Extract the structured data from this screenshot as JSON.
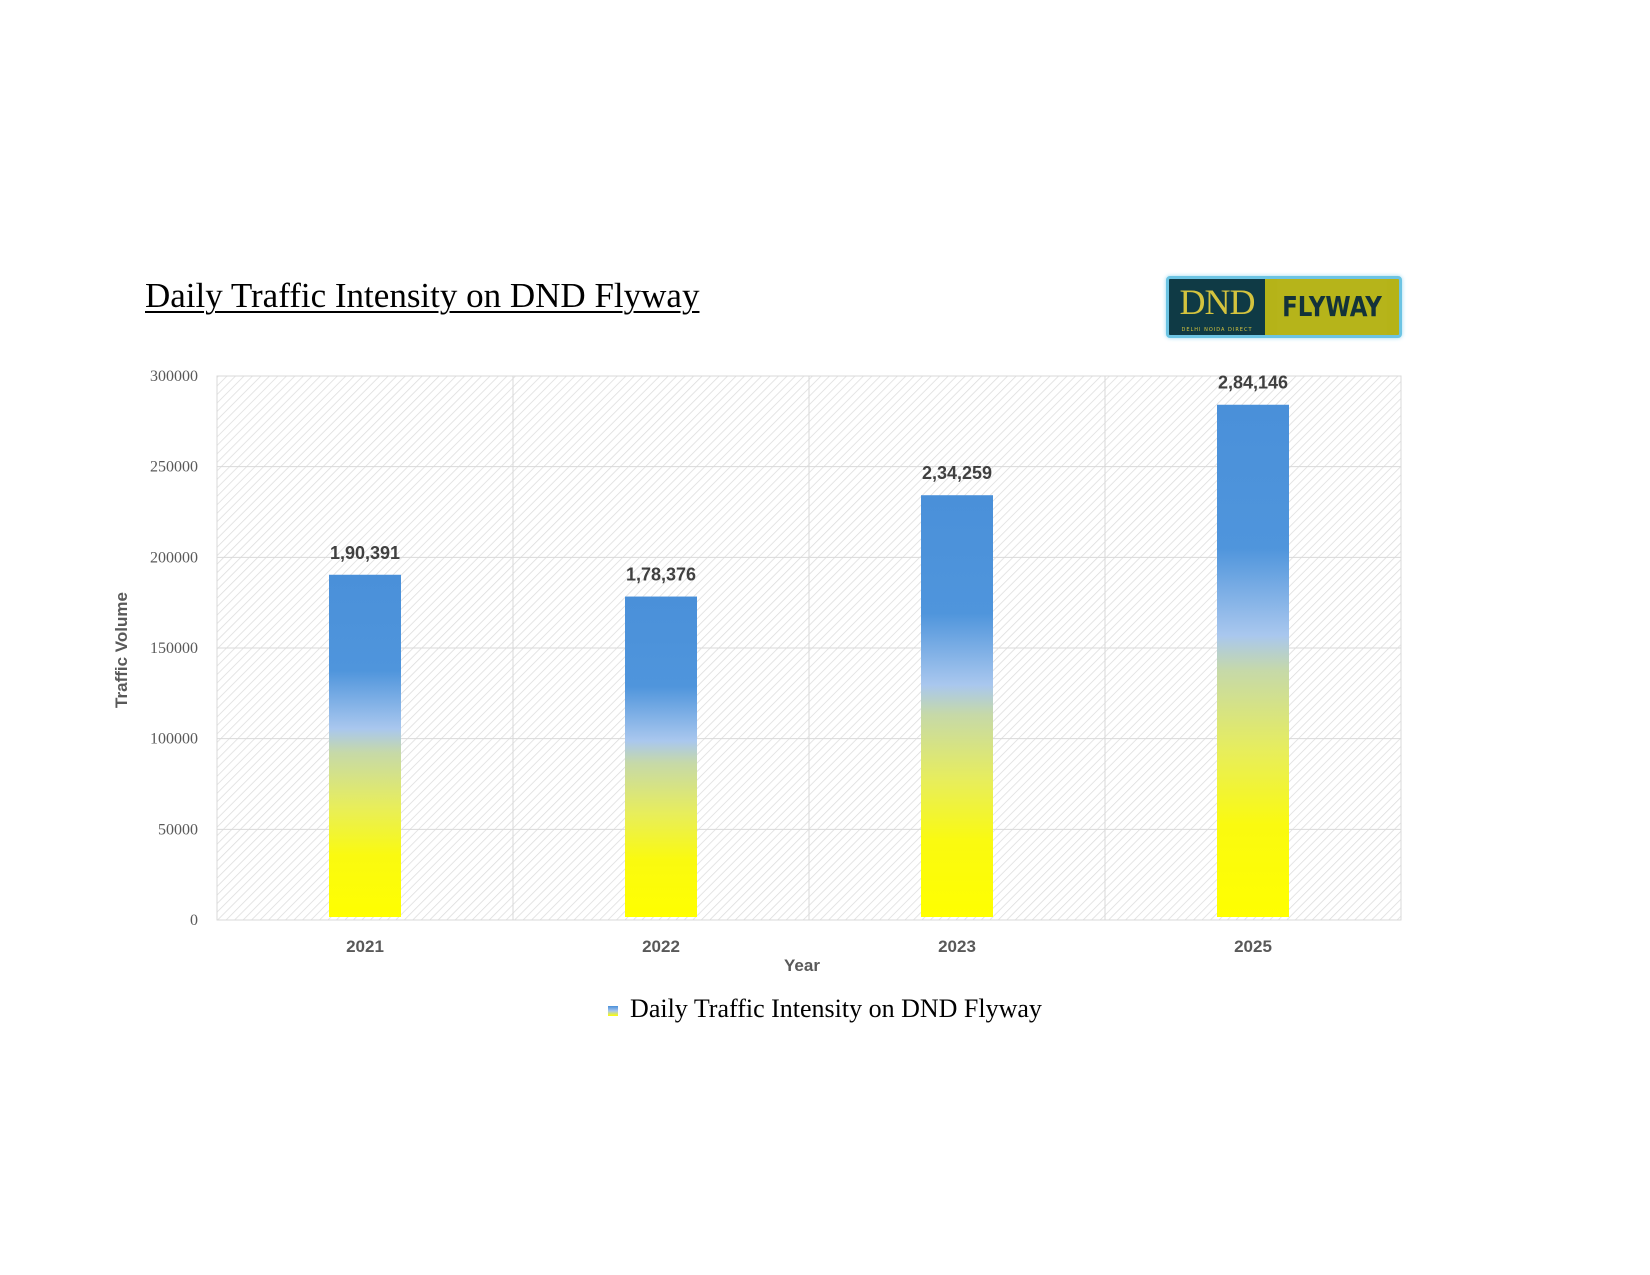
{
  "page": {
    "title": "Daily Traffic Intensity on DND Flyway",
    "logo_left": "DND",
    "logo_sub": "DELHI NOIDA DIRECT",
    "logo_right": "FLYWAY"
  },
  "chart_data": {
    "type": "bar",
    "title": "Daily Traffic Intensity on DND Flyway",
    "xlabel": "Year",
    "ylabel": "Traffic Volume",
    "categories": [
      "2021",
      "2022",
      "2023",
      "2025"
    ],
    "series": [
      {
        "name": "Daily Traffic Intensity on DND Flyway",
        "values": [
          190391,
          178376,
          234259,
          284146
        ],
        "data_labels": [
          "1,90,391",
          "1,78,376",
          "2,34,259",
          "2,84,146"
        ]
      }
    ],
    "ylim": [
      0,
      300000
    ],
    "yticks": [
      "0",
      "50000",
      "100000",
      "150000",
      "200000",
      "250000",
      "300000"
    ],
    "grid": true,
    "legend_position": "bottom",
    "colors": {
      "bar_top": "#4a90d9",
      "bar_mid": "#a9c7ee",
      "bar_bottom": "#ffff00",
      "grid": "#d9d9d9"
    }
  }
}
